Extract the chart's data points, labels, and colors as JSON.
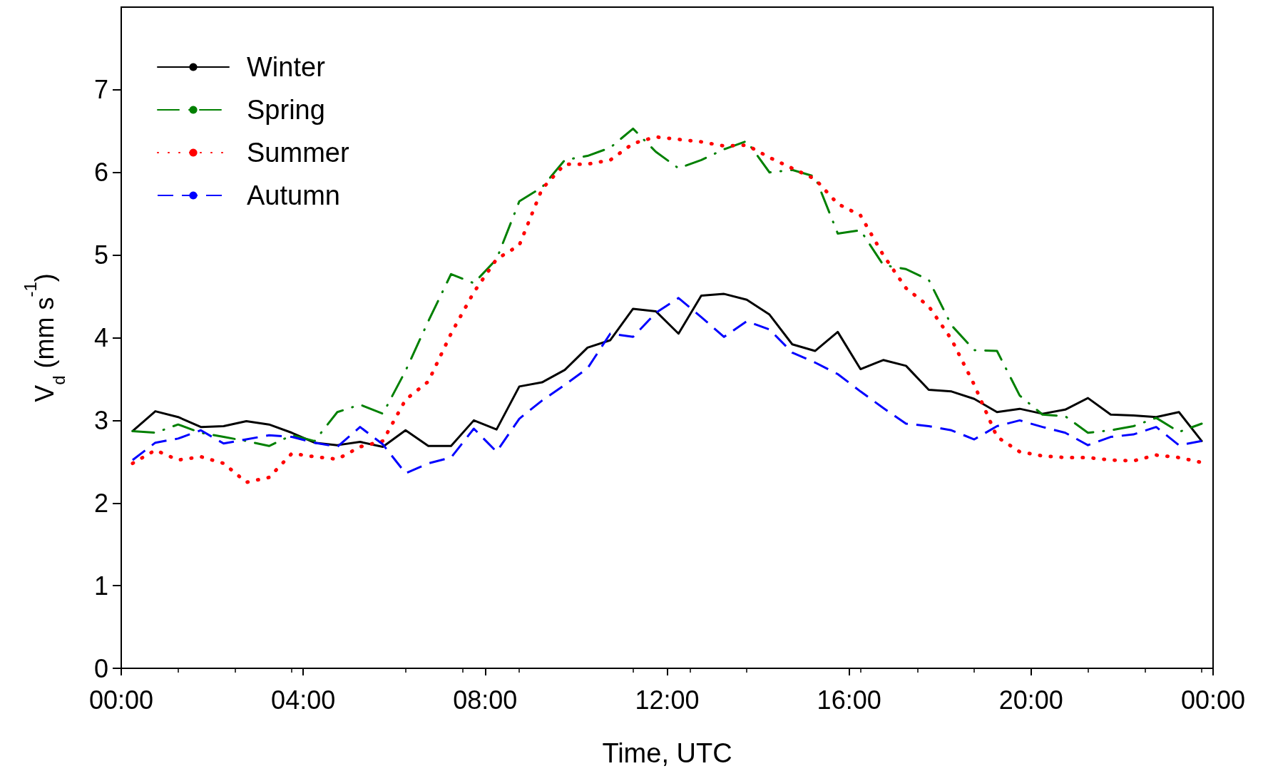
{
  "chart_data": {
    "type": "line",
    "xlabel": "Time, UTC",
    "ylabel": "V$_{d}$ (mm s$^{-1}$)",
    "x": [
      0.25,
      0.75,
      1.25,
      1.75,
      2.25,
      2.75,
      3.25,
      3.75,
      4.25,
      4.75,
      5.25,
      5.75,
      6.25,
      6.75,
      7.25,
      7.75,
      8.25,
      8.75,
      9.25,
      9.75,
      10.25,
      10.75,
      11.25,
      11.75,
      12.25,
      12.75,
      13.25,
      13.75,
      14.25,
      14.75,
      15.25,
      15.75,
      16.25,
      16.75,
      17.25,
      17.75,
      18.25,
      18.75,
      19.25,
      19.75,
      20.25,
      20.75,
      21.25,
      21.75,
      22.25,
      22.75,
      23.25,
      23.75
    ],
    "series": [
      {
        "name": "Winter",
        "color": "#000000",
        "line_style": "solid",
        "values": [
          2.87,
          3.11,
          3.04,
          2.92,
          2.93,
          2.99,
          2.95,
          2.85,
          2.73,
          2.7,
          2.74,
          2.68,
          2.88,
          2.69,
          2.69,
          3.0,
          2.89,
          3.41,
          3.46,
          3.61,
          3.88,
          3.97,
          4.35,
          4.32,
          4.05,
          4.51,
          4.53,
          4.46,
          4.28,
          3.92,
          3.84,
          4.07,
          3.62,
          3.73,
          3.66,
          3.37,
          3.35,
          3.26,
          3.1,
          3.14,
          3.08,
          3.13,
          3.27,
          3.07,
          3.06,
          3.04,
          3.1,
          2.75
        ]
      },
      {
        "name": "Spring",
        "color": "#008000",
        "line_style": "dashdot",
        "values": [
          2.87,
          2.85,
          2.95,
          2.85,
          2.8,
          2.75,
          2.69,
          2.82,
          2.75,
          3.1,
          3.19,
          3.08,
          3.6,
          4.2,
          4.77,
          4.66,
          4.95,
          5.65,
          5.82,
          6.15,
          6.2,
          6.3,
          6.53,
          6.25,
          6.05,
          6.15,
          6.28,
          6.38,
          6.0,
          6.03,
          5.95,
          5.26,
          5.3,
          4.88,
          4.83,
          4.7,
          4.15,
          3.85,
          3.84,
          3.3,
          3.07,
          3.05,
          2.85,
          2.88,
          2.93,
          3.03,
          2.86,
          2.96
        ]
      },
      {
        "name": "Summer",
        "color": "#ff0000",
        "line_style": "dotted",
        "values": [
          2.48,
          2.64,
          2.52,
          2.56,
          2.48,
          2.25,
          2.31,
          2.6,
          2.56,
          2.53,
          2.68,
          2.75,
          3.25,
          3.47,
          4.05,
          4.55,
          4.95,
          5.12,
          5.8,
          6.1,
          6.1,
          6.15,
          6.35,
          6.43,
          6.4,
          6.37,
          6.32,
          6.33,
          6.18,
          6.05,
          5.92,
          5.62,
          5.48,
          5.0,
          4.6,
          4.38,
          3.98,
          3.43,
          2.8,
          2.62,
          2.57,
          2.55,
          2.55,
          2.52,
          2.51,
          2.58,
          2.55,
          2.49
        ]
      },
      {
        "name": "Autumn",
        "color": "#0000ff",
        "line_style": "dashed",
        "values": [
          2.52,
          2.73,
          2.78,
          2.88,
          2.72,
          2.77,
          2.82,
          2.8,
          2.73,
          2.68,
          2.92,
          2.71,
          2.36,
          2.48,
          2.55,
          2.9,
          2.62,
          3.02,
          3.24,
          3.43,
          3.63,
          4.05,
          4.01,
          4.3,
          4.48,
          4.25,
          4.01,
          4.2,
          4.1,
          3.82,
          3.7,
          3.56,
          3.35,
          3.15,
          2.96,
          2.93,
          2.88,
          2.77,
          2.93,
          3.0,
          2.92,
          2.85,
          2.7,
          2.8,
          2.83,
          2.92,
          2.7,
          2.75
        ]
      }
    ],
    "xlim": [
      0,
      24
    ],
    "xticks": [
      {
        "value": 0,
        "label": "00:00"
      },
      {
        "value": 4,
        "label": "04:00"
      },
      {
        "value": 8,
        "label": "08:00"
      },
      {
        "value": 12,
        "label": "12:00"
      },
      {
        "value": 16,
        "label": "16:00"
      },
      {
        "value": 20,
        "label": "20:00"
      },
      {
        "value": 24,
        "label": "00:00"
      }
    ],
    "ylim": [
      0,
      8
    ],
    "yticks": [
      0,
      1,
      2,
      3,
      4,
      5,
      6,
      7
    ],
    "grid": false,
    "legend": "top left",
    "marker": "none"
  }
}
